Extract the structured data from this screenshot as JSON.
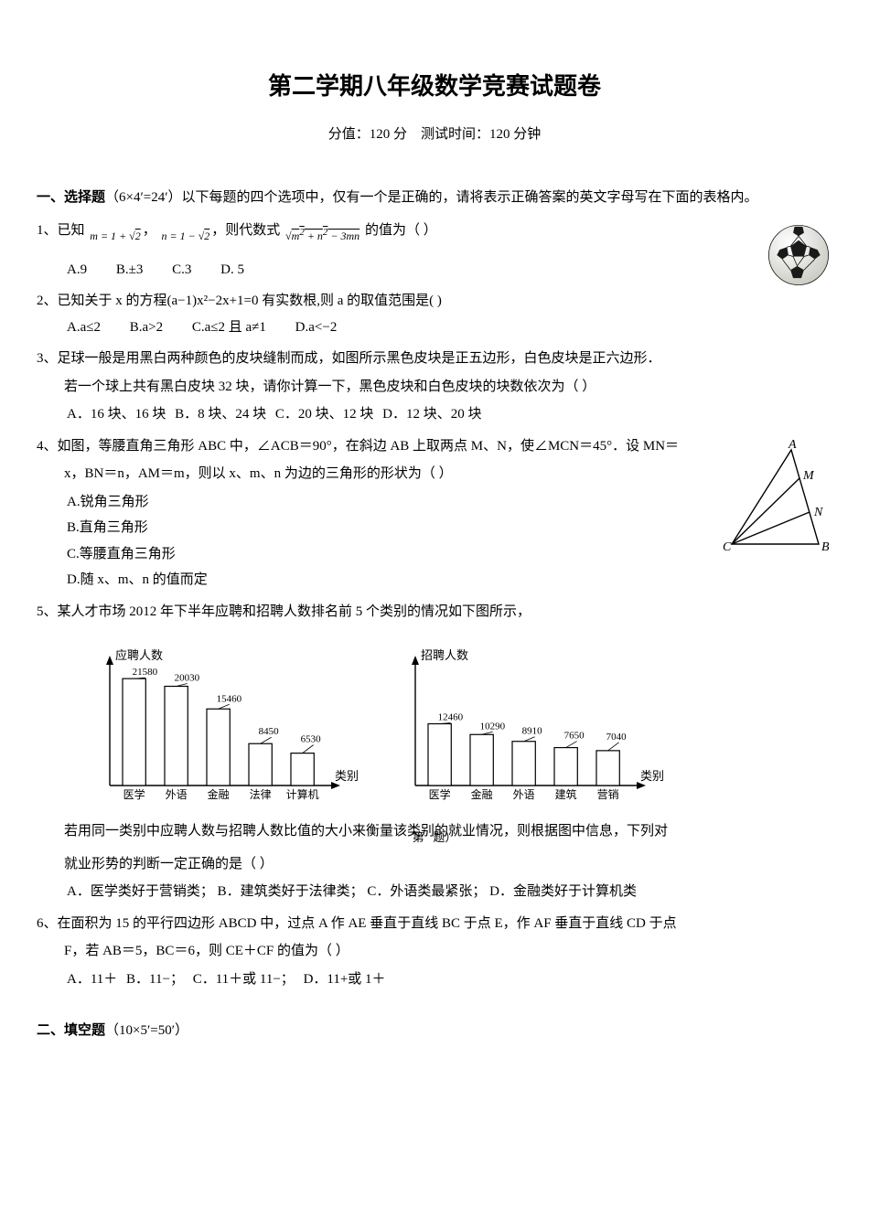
{
  "title": "第二学期八年级数学竞赛试题卷",
  "subtitle_score": "分值：120 分",
  "subtitle_time": "测试时间：120 分钟",
  "section1_head": "一、选择题",
  "section1_note": "（6×4′=24′）以下每题的四个选项中，仅有一个是正确的，请将表示正确答案的英文字母写在下面的表格内。",
  "q1": {
    "num": "1、",
    "pre": "已知",
    "m_expr": "m = 1 + √2",
    "sep": "，",
    "n_expr": "n = 1 − √2",
    "mid": "，则代数式",
    "root_expr": "√(m² + n² − 3mn)",
    "tail": " 的值为（   ）",
    "A": "A.9",
    "B": "B.±3",
    "C": "C.3",
    "D": "D. 5"
  },
  "q2": {
    "num": "2、",
    "stem": "已知关于 x 的方程(a−1)x²−2x+1=0 有实数根,则 a 的取值范围是(    )",
    "A": "A.a≤2",
    "B": "B.a>2",
    "C": "C.a≤2 且 a≠1",
    "D": "D.a<−2"
  },
  "q3": {
    "num": "3、",
    "l1": "足球一般是用黑白两种颜色的皮块缝制而成，如图所示黑色皮块是正五边形，白色皮块是正六边形．",
    "l2": "若一个球上共有黑白皮块 32 块，请你计算一下，黑色皮块和白色皮块的块数依次为（   ）",
    "A": "A．16 块、16 块",
    "B": "B．8 块、24 块",
    "C": "C．20 块、12 块",
    "D": "D．12 块、20 块"
  },
  "q4": {
    "num": "4、",
    "l1": "如图，等腰直角三角形 ABC 中，∠ACB＝90°，在斜边 AB 上取两点 M、N，使∠MCN＝45°．设 MN＝",
    "l2": "x，BN＝n，AM＝m，则以 x、m、n 为边的三角形的形状为（      ）",
    "A": "A.锐角三角形",
    "B": "B.直角三角形",
    "C": "C.等腰直角三角形",
    "D": "D.随 x、m、n 的值而定"
  },
  "q5": {
    "num": "5、",
    "l1": "某人才市场 2012 年下半年应聘和招聘人数排名前 5 个类别的情况如下图所示，",
    "l2": "若用同一类别中应聘人数与招聘人数比值的大小来衡量该类别的就业情况，则根据图中信息，下列对",
    "l3": "就业形势的判断一定正确的是（   ）",
    "A": "A．医学类好于营销类；",
    "B": "B．建筑类好于法律类；",
    "C": "C．外语类最紧张；",
    "D": "D．金融类好于计算机类"
  },
  "q6": {
    "num": "6、",
    "l1": "在面积为 15 的平行四边形 ABCD 中，过点 A 作 AE 垂直于直线 BC 于点 E，作 AF 垂直于直线 CD 于点",
    "l2": "F，若 AB＝5，BC＝6，则 CE＋CF 的值为（   ）",
    "A": "A．11＋",
    "B": "B．11−；",
    "C": "C．11＋或 11−；",
    "D": "D．11+或 1＋"
  },
  "section2_head": "二、填空题",
  "section2_note": "（10×5′=50′）",
  "page_foot_a": "第",
  "page_foot_b": "题）",
  "chart1": {
    "ylabel": "应聘人数",
    "xlabel": "类别",
    "categories": [
      "医学",
      "外语",
      "金融",
      "法律",
      "计算机"
    ],
    "values": [
      21580,
      20030,
      15460,
      8450,
      6530
    ],
    "bar_color": "#ffffff",
    "bar_border": "#000000",
    "axis_color": "#000000",
    "fontsize": 11
  },
  "chart2": {
    "ylabel": "招聘人数",
    "xlabel": "类别",
    "categories": [
      "医学",
      "金融",
      "外语",
      "建筑",
      "营销"
    ],
    "values": [
      12460,
      10290,
      8910,
      7650,
      7040
    ],
    "bar_color": "#ffffff",
    "bar_border": "#000000",
    "axis_color": "#000000",
    "fontsize": 11
  },
  "triangle_diagram": {
    "labels": {
      "A": "A",
      "B": "B",
      "C": "C",
      "M": "M",
      "N": "N"
    },
    "stroke": "#000000",
    "fontsize": 14,
    "font_style": "italic"
  },
  "soccer_icon": {
    "ball_fill": "#f0f0ec",
    "pentagon_fill": "#1a1a1a",
    "stroke": "#000000"
  }
}
